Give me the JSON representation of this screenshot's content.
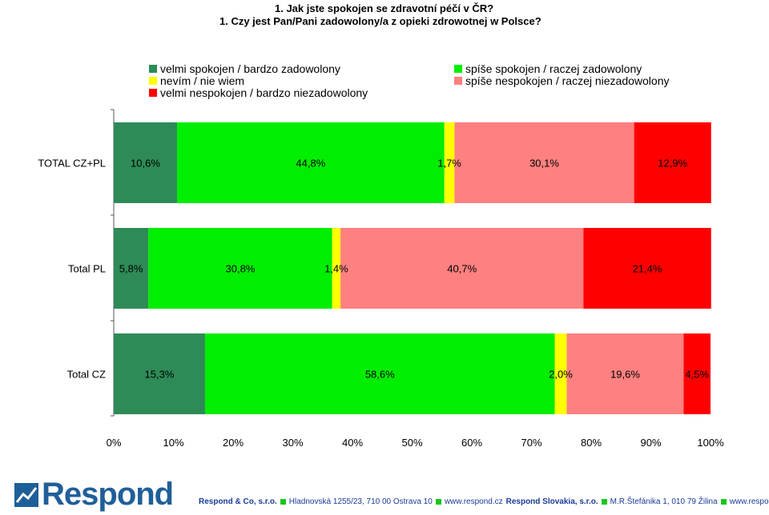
{
  "titles": {
    "line1": "1. Jak jste spokojen se zdravotní péčí v ČR?",
    "line2": "1. Czy jest Pan/Pani zadowolony/a z opieki zdrowotnej w Polsce?"
  },
  "colors": {
    "velmi_spokojen": "#2e8b57",
    "spise_spokojen": "#00ee00",
    "nevim": "#ffff00",
    "spise_nespokojen": "#ff8080",
    "velmi_nespokojen": "#ff0000",
    "logo_blue": "#1f5f99",
    "footer_blue": "#1a3a9a"
  },
  "chart_data": {
    "type": "bar",
    "orientation": "horizontal",
    "stacked": "percent",
    "categories": [
      "TOTAL CZ+PL",
      "Total PL",
      "Total CZ"
    ],
    "series": [
      {
        "name": "velmi spokojen / bardzo zadowolony",
        "color": "#2e8b57",
        "values": [
          10.6,
          5.8,
          15.3
        ],
        "labels": [
          "10,6%",
          "5,8%",
          "15,3%"
        ]
      },
      {
        "name": "spíše spokojen / raczej zadowolony",
        "color": "#00ee00",
        "values": [
          44.8,
          30.8,
          58.6
        ],
        "labels": [
          "44,8%",
          "30,8%",
          "58,6%"
        ]
      },
      {
        "name": "nevím / nie wiem",
        "color": "#ffff00",
        "values": [
          1.7,
          1.4,
          2.0
        ],
        "labels": [
          "1,7%",
          "1,4%",
          "2,0%"
        ]
      },
      {
        "name": "spíše nespokojen / raczej niezadowolony",
        "color": "#ff8080",
        "values": [
          30.1,
          40.7,
          19.6
        ],
        "labels": [
          "30,1%",
          "40,7%",
          "19,6%"
        ]
      },
      {
        "name": "velmi nespokojen / bardzo niezadowolony",
        "color": "#ff0000",
        "values": [
          12.9,
          21.4,
          4.5
        ],
        "labels": [
          "12,9%",
          "21,4%",
          "4,5%"
        ]
      }
    ],
    "xticks": [
      "0%",
      "10%",
      "20%",
      "30%",
      "40%",
      "50%",
      "60%",
      "70%",
      "80%",
      "90%",
      "100%"
    ],
    "xlim": [
      0,
      100
    ],
    "grid": false,
    "legend_position": "top"
  },
  "legend": [
    {
      "label": "velmi spokojen / bardzo zadowolony",
      "color": "#2e8b57"
    },
    {
      "label": "spíše spokojen / raczej zadowolony",
      "color": "#00ee00"
    },
    {
      "label": "nevím / nie wiem",
      "color": "#ffff00"
    },
    {
      "label": "spíše nespokojen / raczej niezadowolony",
      "color": "#ff8080"
    },
    {
      "label": "velmi nespokojen / bardzo niezadowolony",
      "color": "#ff0000"
    }
  ],
  "footer": {
    "logo_text": "Respond",
    "company_cz": "Respond & Co, s.r.o.",
    "address_cz": "Hladnovská 1255/23, 710 00  Ostrava 10",
    "web_cz": "www.respond.cz",
    "company_sk": "Respond Slovakia, s.r.o.",
    "address_sk": "M.R.Štefánika 1, 010 79  Žilina",
    "web_sk": "www.respond.sk"
  }
}
